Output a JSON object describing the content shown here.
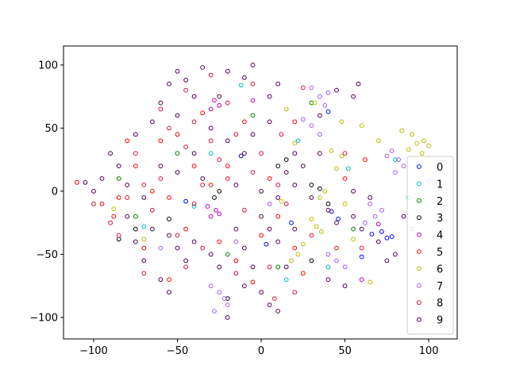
{
  "chart_data": {
    "type": "scatter",
    "title": "",
    "xlabel": "",
    "ylabel": "",
    "xlim": [
      -118,
      117
    ],
    "ylim": [
      -117,
      115
    ],
    "xticks": [
      -100,
      -50,
      0,
      50,
      100
    ],
    "yticks": [
      -100,
      -50,
      0,
      50,
      100
    ],
    "xtick_labels": [
      "−100",
      "−50",
      "0",
      "50",
      "100"
    ],
    "ytick_labels": [
      "−100",
      "−50",
      "0",
      "50",
      "100"
    ],
    "grid": false,
    "legend_position": "lower-right",
    "marker": "hollow circle",
    "series": [
      {
        "name": "0",
        "color": "#0000ff",
        "points": [
          [
            -12,
            28
          ],
          [
            18,
            -25
          ],
          [
            42,
            -16
          ],
          [
            46,
            -22
          ],
          [
            72,
            -32
          ],
          [
            75,
            -37
          ],
          [
            78,
            -36
          ],
          [
            40,
            63
          ],
          [
            3,
            -42
          ],
          [
            -45,
            -8
          ],
          [
            60,
            -52
          ],
          [
            66,
            -34
          ]
        ]
      },
      {
        "name": "1",
        "color": "#00bfbf",
        "points": [
          [
            -12,
            84
          ],
          [
            22,
            40
          ],
          [
            -30,
            30
          ],
          [
            52,
            18
          ],
          [
            -40,
            -12
          ],
          [
            80,
            25
          ],
          [
            -70,
            -28
          ],
          [
            15,
            -70
          ],
          [
            88,
            -5
          ],
          [
            40,
            -60
          ]
        ]
      },
      {
        "name": "2",
        "color": "#008000",
        "points": [
          [
            -50,
            30
          ],
          [
            10,
            -60
          ],
          [
            -75,
            -20
          ],
          [
            30,
            70
          ],
          [
            -20,
            -50
          ],
          [
            55,
            -30
          ],
          [
            -5,
            60
          ],
          [
            -85,
            10
          ]
        ]
      },
      {
        "name": "3",
        "color": "#000000",
        "points": [
          [
            -25,
            0
          ],
          [
            -28,
            -5
          ],
          [
            30,
            5
          ],
          [
            35,
            2
          ],
          [
            40,
            -10
          ],
          [
            -75,
            -30
          ],
          [
            -85,
            -38
          ],
          [
            10,
            20
          ],
          [
            30,
            -55
          ],
          [
            -20,
            -85
          ],
          [
            -55,
            -22
          ],
          [
            15,
            25
          ]
        ]
      },
      {
        "name": "4",
        "color": "#bf00bf",
        "points": [
          [
            -30,
            65
          ],
          [
            -28,
            72
          ],
          [
            -25,
            68
          ],
          [
            -27,
            -15
          ],
          [
            -30,
            -20
          ],
          [
            -25,
            -18
          ],
          [
            -32,
            -12
          ],
          [
            60,
            -70
          ],
          [
            -5,
            72
          ],
          [
            70,
            -26
          ]
        ]
      },
      {
        "name": "5",
        "color": "#ff0000",
        "points": [
          [
            -110,
            7
          ],
          [
            -95,
            -10
          ],
          [
            -88,
            -20
          ],
          [
            -70,
            -45
          ],
          [
            -55,
            -70
          ],
          [
            -30,
            5
          ],
          [
            -20,
            20
          ],
          [
            0,
            -35
          ],
          [
            10,
            -20
          ],
          [
            -75,
            20
          ],
          [
            -50,
            45
          ],
          [
            -15,
            -55
          ],
          [
            -60,
            40
          ],
          [
            -40,
            20
          ],
          [
            -10,
            55
          ],
          [
            5,
            10
          ],
          [
            -85,
            -5
          ],
          [
            -45,
            -30
          ],
          [
            -25,
            -40
          ],
          [
            20,
            -45
          ],
          [
            25,
            -65
          ],
          [
            -65,
            0
          ],
          [
            50,
            10
          ],
          [
            45,
            -45
          ],
          [
            -35,
            62
          ],
          [
            62,
            25
          ],
          [
            -55,
            -5
          ],
          [
            -80,
            40
          ],
          [
            20,
            55
          ],
          [
            -5,
            -72
          ]
        ]
      },
      {
        "name": "6",
        "color": "#bfbf00",
        "points": [
          [
            93,
            38
          ],
          [
            97,
            40
          ],
          [
            90,
            45
          ],
          [
            88,
            33
          ],
          [
            100,
            36
          ],
          [
            84,
            48
          ],
          [
            96,
            30
          ],
          [
            33,
            -28
          ],
          [
            36,
            -32
          ],
          [
            30,
            -22
          ],
          [
            42,
            32
          ],
          [
            48,
            28
          ],
          [
            45,
            18
          ],
          [
            38,
            0
          ],
          [
            35,
            -5
          ],
          [
            50,
            -10
          ],
          [
            55,
            -38
          ],
          [
            22,
            -50
          ],
          [
            18,
            -55
          ],
          [
            25,
            -42
          ],
          [
            60,
            52
          ],
          [
            48,
            55
          ],
          [
            15,
            65
          ],
          [
            20,
            38
          ],
          [
            -70,
            -38
          ],
          [
            -88,
            -14
          ],
          [
            32,
            70
          ],
          [
            12,
            -8
          ],
          [
            65,
            -72
          ],
          [
            70,
            40
          ]
        ]
      },
      {
        "name": "7",
        "color": "#a35cff",
        "points": [
          [
            78,
            32
          ],
          [
            82,
            25
          ],
          [
            85,
            20
          ],
          [
            80,
            15
          ],
          [
            75,
            28
          ],
          [
            35,
            75
          ],
          [
            40,
            78
          ],
          [
            30,
            82
          ],
          [
            38,
            68
          ],
          [
            65,
            -10
          ],
          [
            68,
            -20
          ],
          [
            72,
            -15
          ],
          [
            62,
            -25
          ],
          [
            -25,
            -80
          ],
          [
            -20,
            -90
          ],
          [
            -28,
            -95
          ],
          [
            -22,
            -85
          ],
          [
            -30,
            -75
          ],
          [
            40,
            -50
          ],
          [
            45,
            -55
          ],
          [
            50,
            -60
          ],
          [
            25,
            57
          ],
          [
            30,
            52
          ],
          [
            35,
            45
          ],
          [
            -15,
            -40
          ],
          [
            5,
            -10
          ],
          [
            100,
            8
          ],
          [
            104,
            5
          ],
          [
            -60,
            -45
          ],
          [
            90,
            -30
          ]
        ]
      },
      {
        "name": "8",
        "color": "#dc143c",
        "points": [
          [
            -75,
            30
          ],
          [
            -60,
            10
          ],
          [
            -45,
            35
          ],
          [
            -30,
            40
          ],
          [
            -20,
            10
          ],
          [
            -10,
            -15
          ],
          [
            0,
            30
          ],
          [
            15,
            -10
          ],
          [
            -65,
            -15
          ],
          [
            -55,
            50
          ],
          [
            -40,
            -10
          ],
          [
            -25,
            25
          ],
          [
            -15,
            45
          ],
          [
            5,
            -60
          ],
          [
            20,
            -80
          ],
          [
            -80,
            -5
          ],
          [
            -45,
            -60
          ],
          [
            -35,
            -45
          ],
          [
            10,
            5
          ],
          [
            -100,
            -10
          ],
          [
            -70,
            -65
          ],
          [
            -5,
            85
          ],
          [
            -30,
            92
          ],
          [
            25,
            82
          ],
          [
            50,
            30
          ],
          [
            -50,
            -35
          ],
          [
            -15,
            -65
          ],
          [
            -20,
            70
          ],
          [
            -60,
            65
          ],
          [
            30,
            -35
          ],
          [
            -90,
            -25
          ],
          [
            12,
            45
          ],
          [
            -35,
            5
          ],
          [
            -5,
            15
          ],
          [
            -40,
            55
          ],
          [
            60,
            -45
          ],
          [
            -85,
            -35
          ],
          [
            -45,
            80
          ],
          [
            -70,
            5
          ],
          [
            8,
            -85
          ]
        ]
      },
      {
        "name": "9",
        "color": "#4d004d",
        "points": [
          [
            -20,
            95
          ],
          [
            -5,
            100
          ],
          [
            -10,
            90
          ],
          [
            -35,
            98
          ],
          [
            -45,
            88
          ],
          [
            -50,
            95
          ],
          [
            -55,
            85
          ],
          [
            -40,
            75
          ],
          [
            -60,
            70
          ],
          [
            5,
            75
          ],
          [
            10,
            85
          ],
          [
            -90,
            30
          ],
          [
            -85,
            20
          ],
          [
            -95,
            10
          ],
          [
            -80,
            5
          ],
          [
            -70,
            -5
          ],
          [
            -65,
            -30
          ],
          [
            -55,
            -35
          ],
          [
            -50,
            -45
          ],
          [
            -45,
            -55
          ],
          [
            -40,
            -40
          ],
          [
            -30,
            -50
          ],
          [
            -25,
            -60
          ],
          [
            -15,
            -30
          ],
          [
            -10,
            -45
          ],
          [
            0,
            -20
          ],
          [
            5,
            -30
          ],
          [
            10,
            -40
          ],
          [
            0,
            -80
          ],
          [
            5,
            -90
          ],
          [
            10,
            -95
          ],
          [
            -5,
            -60
          ],
          [
            -35,
            10
          ],
          [
            -20,
            40
          ],
          [
            -10,
            30
          ],
          [
            -5,
            45
          ],
          [
            15,
            15
          ],
          [
            20,
            5
          ],
          [
            25,
            20
          ],
          [
            30,
            -5
          ],
          [
            40,
            -15
          ],
          [
            45,
            -25
          ],
          [
            55,
            -20
          ],
          [
            60,
            -30
          ],
          [
            70,
            -40
          ],
          [
            80,
            -50
          ],
          [
            65,
            -5
          ],
          [
            55,
            0
          ],
          [
            -75,
            45
          ],
          [
            -65,
            55
          ],
          [
            -60,
            20
          ],
          [
            -50,
            15
          ],
          [
            -40,
            30
          ],
          [
            -30,
            50
          ],
          [
            -100,
            0
          ],
          [
            -105,
            7
          ],
          [
            -80,
            -20
          ],
          [
            -75,
            -40
          ],
          [
            20,
            30
          ],
          [
            0,
            0
          ],
          [
            -15,
            5
          ],
          [
            5,
            55
          ],
          [
            35,
            60
          ],
          [
            45,
            80
          ],
          [
            55,
            75
          ],
          [
            58,
            85
          ],
          [
            40,
            -70
          ],
          [
            50,
            -75
          ],
          [
            -60,
            -70
          ],
          [
            -55,
            -80
          ],
          [
            -20,
            -100
          ],
          [
            -10,
            -75
          ],
          [
            15,
            -60
          ],
          [
            20,
            -30
          ],
          [
            85,
            -20
          ],
          [
            75,
            -55
          ],
          [
            35,
            30
          ],
          [
            -25,
            75
          ],
          [
            -70,
            -55
          ],
          [
            -50,
            60
          ],
          [
            10,
            -5
          ]
        ]
      }
    ]
  }
}
